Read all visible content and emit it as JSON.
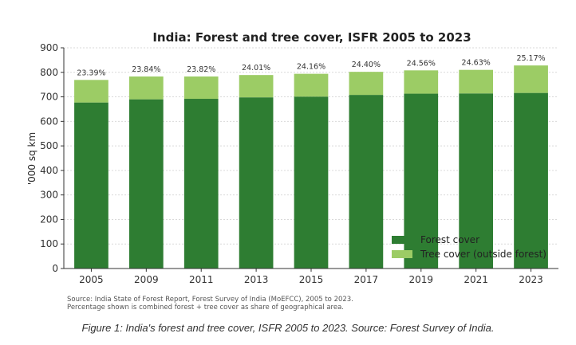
{
  "chart_data": {
    "type": "bar",
    "stacked": true,
    "title": "India: Forest and tree cover, ISFR 2005 to 2023",
    "xlabel": "",
    "ylabel": "'000 sq km",
    "ylim": [
      0,
      900
    ],
    "yticks": [
      0,
      100,
      200,
      300,
      400,
      500,
      600,
      700,
      800,
      900
    ],
    "grid": true,
    "categories": [
      "2005",
      "2009",
      "2011",
      "2013",
      "2015",
      "2017",
      "2019",
      "2021",
      "2023"
    ],
    "series": [
      {
        "name": "Forest cover",
        "color": "#2e7d32",
        "values": [
          677,
          690,
          692,
          698,
          701,
          708,
          713,
          714,
          716
        ]
      },
      {
        "name": "Tree cover (outside forest)",
        "color": "#9ccc65",
        "values": [
          92,
          93,
          91,
          91,
          93,
          94,
          95,
          96,
          112
        ]
      }
    ],
    "data_labels": [
      "23.39%",
      "23.84%",
      "23.82%",
      "24.01%",
      "24.16%",
      "24.40%",
      "24.56%",
      "24.63%",
      "25.17%"
    ],
    "legend_position": "lower-right",
    "source_lines": [
      "Source: India State of Forest Report, Forest Survey of India (MoEFCC), 2005 to 2023.",
      "Percentage shown is combined forest + tree cover as share of geographical area."
    ]
  },
  "caption": "Figure 1: India's forest and tree cover, ISFR 2005 to 2023. Source: Forest Survey of India."
}
